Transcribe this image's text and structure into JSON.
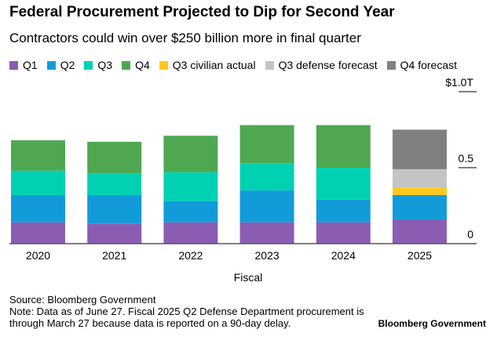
{
  "title": "Federal Procurement Projected to Dip for Second Year",
  "subtitle": "Contractors could win over $250 billion more in final quarter",
  "source": "Source: Bloomberg Government",
  "note_line1": "Note: Data as of June 27. Fiscal 2025 Q2 Defense Department procurement is",
  "note_line2": "through March 27 because data is reported on a 90-day delay.",
  "brand": "Bloomberg Government",
  "chart_data": {
    "type": "bar",
    "stacked": true,
    "xlabel": "Fiscal",
    "categories": [
      "2020",
      "2021",
      "2022",
      "2023",
      "2024",
      "2025"
    ],
    "ylim": [
      0,
      1.0
    ],
    "yticks": [
      {
        "value": 0,
        "label": "0"
      },
      {
        "value": 0.5,
        "label": "0.5"
      },
      {
        "value": 1.0,
        "label": "$1.0T"
      }
    ],
    "legend_position": "top",
    "series": [
      {
        "name": "Q1",
        "color": "#8a5db2",
        "values": [
          0.14,
          0.13,
          0.14,
          0.14,
          0.14,
          0.16
        ]
      },
      {
        "name": "Q2",
        "color": "#119cd9",
        "values": [
          0.18,
          0.19,
          0.14,
          0.21,
          0.15,
          0.16
        ]
      },
      {
        "name": "Q3",
        "color": "#00d1b2",
        "values": [
          0.16,
          0.14,
          0.19,
          0.18,
          0.21,
          null
        ]
      },
      {
        "name": "Q4",
        "color": "#4fa851",
        "values": [
          0.2,
          0.21,
          0.24,
          0.25,
          0.28,
          null
        ]
      },
      {
        "name": "Q3 civilian actual",
        "color": "#ffc81f",
        "values": [
          null,
          null,
          null,
          null,
          null,
          0.05
        ]
      },
      {
        "name": "Q3 defense forecast",
        "color": "#c4c4c4",
        "values": [
          null,
          null,
          null,
          null,
          null,
          0.12
        ]
      },
      {
        "name": "Q4 forecast",
        "color": "#808080",
        "values": [
          null,
          null,
          null,
          null,
          null,
          0.26
        ]
      }
    ]
  }
}
